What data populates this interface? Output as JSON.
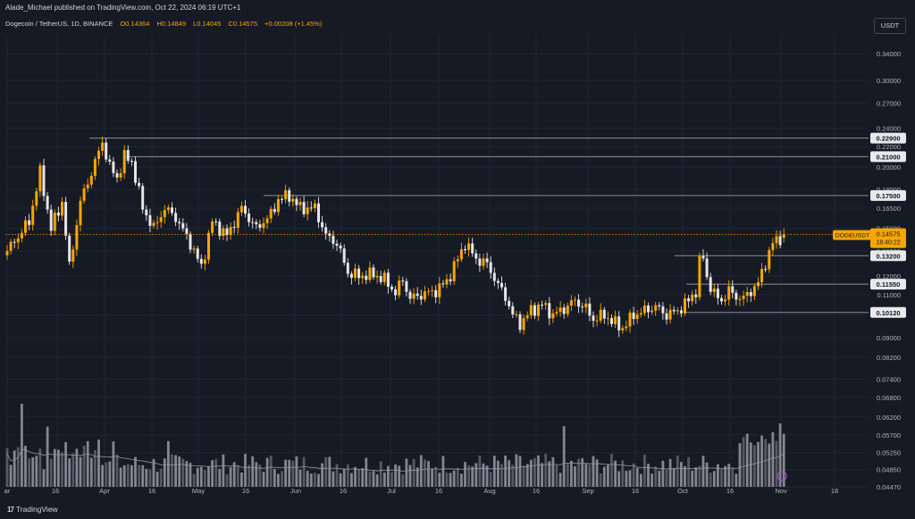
{
  "header": {
    "published_line": "Alade_Michael published on TradingView.com, Oct 22, 2024 06:19 UTC+1",
    "symbol_line": "Dogecoin / TetherUS, 1D, BINANCE",
    "ohlc": {
      "o": "O0.14364",
      "h": "H0.14849",
      "l": "L0.14045",
      "c": "C0.14575",
      "chg": "+0.00208 (+1.45%)"
    }
  },
  "currency_button": "USDT",
  "footer": {
    "logo_mark": "17",
    "brand": "TradingView"
  },
  "colors": {
    "up": "#f7a600",
    "down": "#e6e6e6",
    "level": "#8a8f99",
    "bg": "#161a25",
    "grid": "#222632"
  },
  "chart_data": {
    "type": "candlestick",
    "x_axis_labels": [
      "ar",
      "16",
      "Apr",
      "16",
      "May",
      "16",
      "Jun",
      "16",
      "Jul",
      "16",
      "Aug",
      "16",
      "Sep",
      "16",
      "Oct",
      "16",
      "Nov",
      "18"
    ],
    "y_ticks": [
      "0.34000",
      "0.30000",
      "0.27000",
      "0.24000",
      "0.22000",
      "0.20000",
      "0.18000",
      "0.16500",
      "0.15000",
      "0.13500",
      "0.12000",
      "0.11000",
      "0.10000",
      "0.09000",
      "0.08200",
      "0.07400",
      "0.06800",
      "0.06200",
      "0.05700",
      "0.05250",
      "0.04850",
      "0.04470"
    ],
    "scale": "log",
    "ylim": [
      0.0447,
      0.37
    ],
    "horizontal_levels": [
      "0.22900",
      "0.21000",
      "0.17500",
      "0.13200",
      "0.11550",
      "0.10120"
    ],
    "current_price_label": {
      "symbol": "DOGEUSDT",
      "price": "0.14575",
      "countdown": "18:40:22"
    },
    "close_anchors": [
      [
        0,
        0.135
      ],
      [
        6,
        0.155
      ],
      [
        9,
        0.195
      ],
      [
        12,
        0.15
      ],
      [
        15,
        0.17
      ],
      [
        17,
        0.125
      ],
      [
        20,
        0.17
      ],
      [
        23,
        0.195
      ],
      [
        26,
        0.225
      ],
      [
        28,
        0.2
      ],
      [
        30,
        0.19
      ],
      [
        32,
        0.21
      ],
      [
        34,
        0.205
      ],
      [
        37,
        0.165
      ],
      [
        40,
        0.15
      ],
      [
        43,
        0.165
      ],
      [
        46,
        0.158
      ],
      [
        50,
        0.14
      ],
      [
        53,
        0.125
      ],
      [
        56,
        0.155
      ],
      [
        60,
        0.145
      ],
      [
        64,
        0.165
      ],
      [
        68,
        0.15
      ],
      [
        72,
        0.16
      ],
      [
        74,
        0.172
      ],
      [
        77,
        0.175
      ],
      [
        80,
        0.165
      ],
      [
        84,
        0.165
      ],
      [
        87,
        0.145
      ],
      [
        90,
        0.14
      ],
      [
        93,
        0.122
      ],
      [
        96,
        0.12
      ],
      [
        100,
        0.121
      ],
      [
        103,
        0.118
      ],
      [
        106,
        0.111
      ],
      [
        108,
        0.118
      ],
      [
        110,
        0.108
      ],
      [
        113,
        0.11
      ],
      [
        117,
        0.112
      ],
      [
        120,
        0.117
      ],
      [
        123,
        0.13
      ],
      [
        125,
        0.14
      ],
      [
        128,
        0.13
      ],
      [
        131,
        0.127
      ],
      [
        134,
        0.115
      ],
      [
        136,
        0.109
      ],
      [
        138,
        0.1
      ],
      [
        140,
        0.096
      ],
      [
        143,
        0.102
      ],
      [
        146,
        0.105
      ],
      [
        149,
        0.1
      ],
      [
        152,
        0.103
      ],
      [
        155,
        0.107
      ],
      [
        158,
        0.103
      ],
      [
        160,
        0.098
      ],
      [
        163,
        0.1
      ],
      [
        166,
        0.096
      ],
      [
        168,
        0.094
      ],
      [
        171,
        0.1
      ],
      [
        174,
        0.102
      ],
      [
        177,
        0.104
      ],
      [
        180,
        0.1
      ],
      [
        183,
        0.102
      ],
      [
        186,
        0.107
      ],
      [
        188,
        0.112
      ],
      [
        189,
        0.128
      ],
      [
        190,
        0.131
      ],
      [
        191,
        0.119
      ],
      [
        193,
        0.11
      ],
      [
        195,
        0.107
      ],
      [
        197,
        0.112
      ],
      [
        199,
        0.109
      ],
      [
        201,
        0.108
      ],
      [
        203,
        0.112
      ],
      [
        205,
        0.116
      ],
      [
        207,
        0.128
      ],
      [
        209,
        0.14
      ],
      [
        211,
        0.1437
      ],
      [
        212,
        0.1457
      ]
    ]
  }
}
